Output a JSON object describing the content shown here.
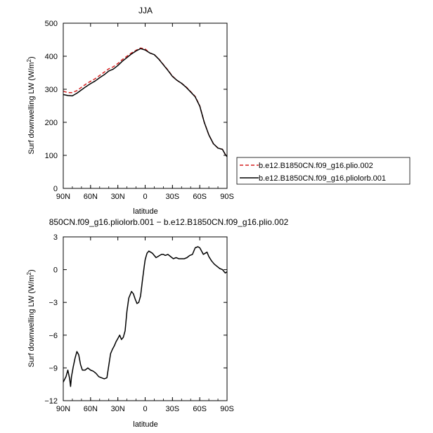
{
  "chart_data": [
    {
      "type": "line",
      "title": "JJA",
      "xlabel": "latitude",
      "ylabel": "Surf downwelling LW (W/m",
      "ylabel_sup": "2",
      "ylabel_close": ")",
      "xlim": [
        90,
        -90
      ],
      "ylim": [
        0,
        500
      ],
      "xticks": [
        90,
        60,
        30,
        0,
        -30,
        -60,
        -90
      ],
      "xtick_labels": [
        "90N",
        "60N",
        "30N",
        "0",
        "30S",
        "60S",
        "90S"
      ],
      "yticks": [
        0,
        100,
        200,
        300,
        400,
        500
      ],
      "ytick_labels": [
        "0",
        "100",
        "200",
        "300",
        "400",
        "500"
      ],
      "legend_position": "right",
      "series": [
        {
          "name": "b.e12.B1850CN.f09_g16.plio.002",
          "color": "#d62020",
          "dash": "dashed",
          "x": [
            90,
            85,
            80,
            75,
            70,
            65,
            60,
            55,
            50,
            45,
            40,
            35,
            30,
            25,
            20,
            15,
            10,
            5,
            0,
            -5,
            -10,
            -15,
            -20,
            -25,
            -30,
            -35,
            -40,
            -45,
            -50,
            -55,
            -60,
            -65,
            -70,
            -75,
            -80,
            -85,
            -88,
            -90
          ],
          "values": [
            294,
            290,
            290,
            296,
            306,
            316,
            324,
            332,
            342,
            352,
            362,
            368,
            378,
            390,
            400,
            410,
            418,
            425,
            422,
            410,
            405,
            392,
            375,
            358,
            340,
            327,
            318,
            307,
            293,
            278,
            250,
            200,
            162,
            135,
            122,
            118,
            103,
            96
          ]
        },
        {
          "name": "b.e12.B1850CN.f09_g16.pliolorb.001",
          "color": "#000000",
          "dash": "solid",
          "x": [
            90,
            85,
            80,
            75,
            70,
            65,
            60,
            55,
            50,
            45,
            40,
            35,
            30,
            25,
            20,
            15,
            10,
            5,
            0,
            -5,
            -10,
            -15,
            -20,
            -25,
            -30,
            -35,
            -40,
            -45,
            -50,
            -55,
            -60,
            -65,
            -70,
            -75,
            -80,
            -85,
            -88,
            -90
          ],
          "values": [
            284,
            281,
            280,
            288,
            298,
            308,
            317,
            325,
            335,
            344,
            355,
            361,
            372,
            385,
            396,
            407,
            416,
            423,
            419,
            410,
            405,
            391,
            374,
            357,
            339,
            327,
            318,
            306,
            292,
            277,
            249,
            200,
            162,
            135,
            122,
            118,
            103,
            96
          ]
        }
      ]
    },
    {
      "type": "line",
      "title": "850CN.f09_g16.pliolorb.001 − b.e12.B1850CN.f09_g16.plio.002",
      "xlabel": "latitude",
      "ylabel": "Surf downwelling LW (W/m",
      "ylabel_sup": "2",
      "ylabel_close": ")",
      "xlim": [
        90,
        -90
      ],
      "ylim": [
        -12,
        3
      ],
      "xticks": [
        90,
        60,
        30,
        0,
        -30,
        -60,
        -90
      ],
      "xtick_labels": [
        "90N",
        "60N",
        "30N",
        "0",
        "30S",
        "60S",
        "90S"
      ],
      "yticks": [
        -12,
        -9,
        -6,
        -3,
        0,
        3
      ],
      "ytick_labels": [
        "−12",
        "−9",
        "−6",
        "−3",
        "0",
        "3"
      ],
      "series": [
        {
          "color": "#000000",
          "x": [
            90,
            87,
            85,
            83,
            82,
            81,
            79,
            77,
            75,
            73,
            71,
            69,
            66,
            63,
            60,
            57,
            54,
            51,
            48,
            45,
            42,
            40,
            38,
            36,
            34,
            32,
            30,
            28,
            26,
            24,
            22,
            20,
            18,
            15,
            13,
            11,
            9,
            7,
            5,
            3,
            1,
            0,
            -2,
            -4,
            -6,
            -8,
            -10,
            -12,
            -14,
            -16,
            -18,
            -20,
            -22,
            -25,
            -28,
            -31,
            -34,
            -37,
            -40,
            -43,
            -46,
            -49,
            -52,
            -55,
            -58,
            -60,
            -62,
            -64,
            -66,
            -68,
            -70,
            -73,
            -76,
            -79,
            -82,
            -85,
            -88,
            -90
          ],
          "values": [
            -10.3,
            -9.8,
            -9.2,
            -10.0,
            -10.7,
            -9.8,
            -8.9,
            -8.1,
            -7.5,
            -7.8,
            -8.7,
            -9.2,
            -9.2,
            -9.0,
            -9.2,
            -9.3,
            -9.5,
            -9.8,
            -9.9,
            -10.0,
            -9.9,
            -8.8,
            -7.7,
            -7.3,
            -7.0,
            -6.6,
            -6.3,
            -6.0,
            -6.4,
            -6.2,
            -5.6,
            -3.8,
            -2.6,
            -2.0,
            -2.2,
            -2.7,
            -3.1,
            -3.0,
            -2.4,
            -1.0,
            0.3,
            0.9,
            1.5,
            1.7,
            1.6,
            1.5,
            1.3,
            1.1,
            1.2,
            1.3,
            1.4,
            1.4,
            1.3,
            1.4,
            1.2,
            1.0,
            1.1,
            1.0,
            1.0,
            1.0,
            1.1,
            1.3,
            1.4,
            2.0,
            2.1,
            2.0,
            1.7,
            1.4,
            1.5,
            1.6,
            1.2,
            0.8,
            0.5,
            0.3,
            0.1,
            0.0,
            -0.3,
            -0.2
          ]
        }
      ]
    }
  ]
}
